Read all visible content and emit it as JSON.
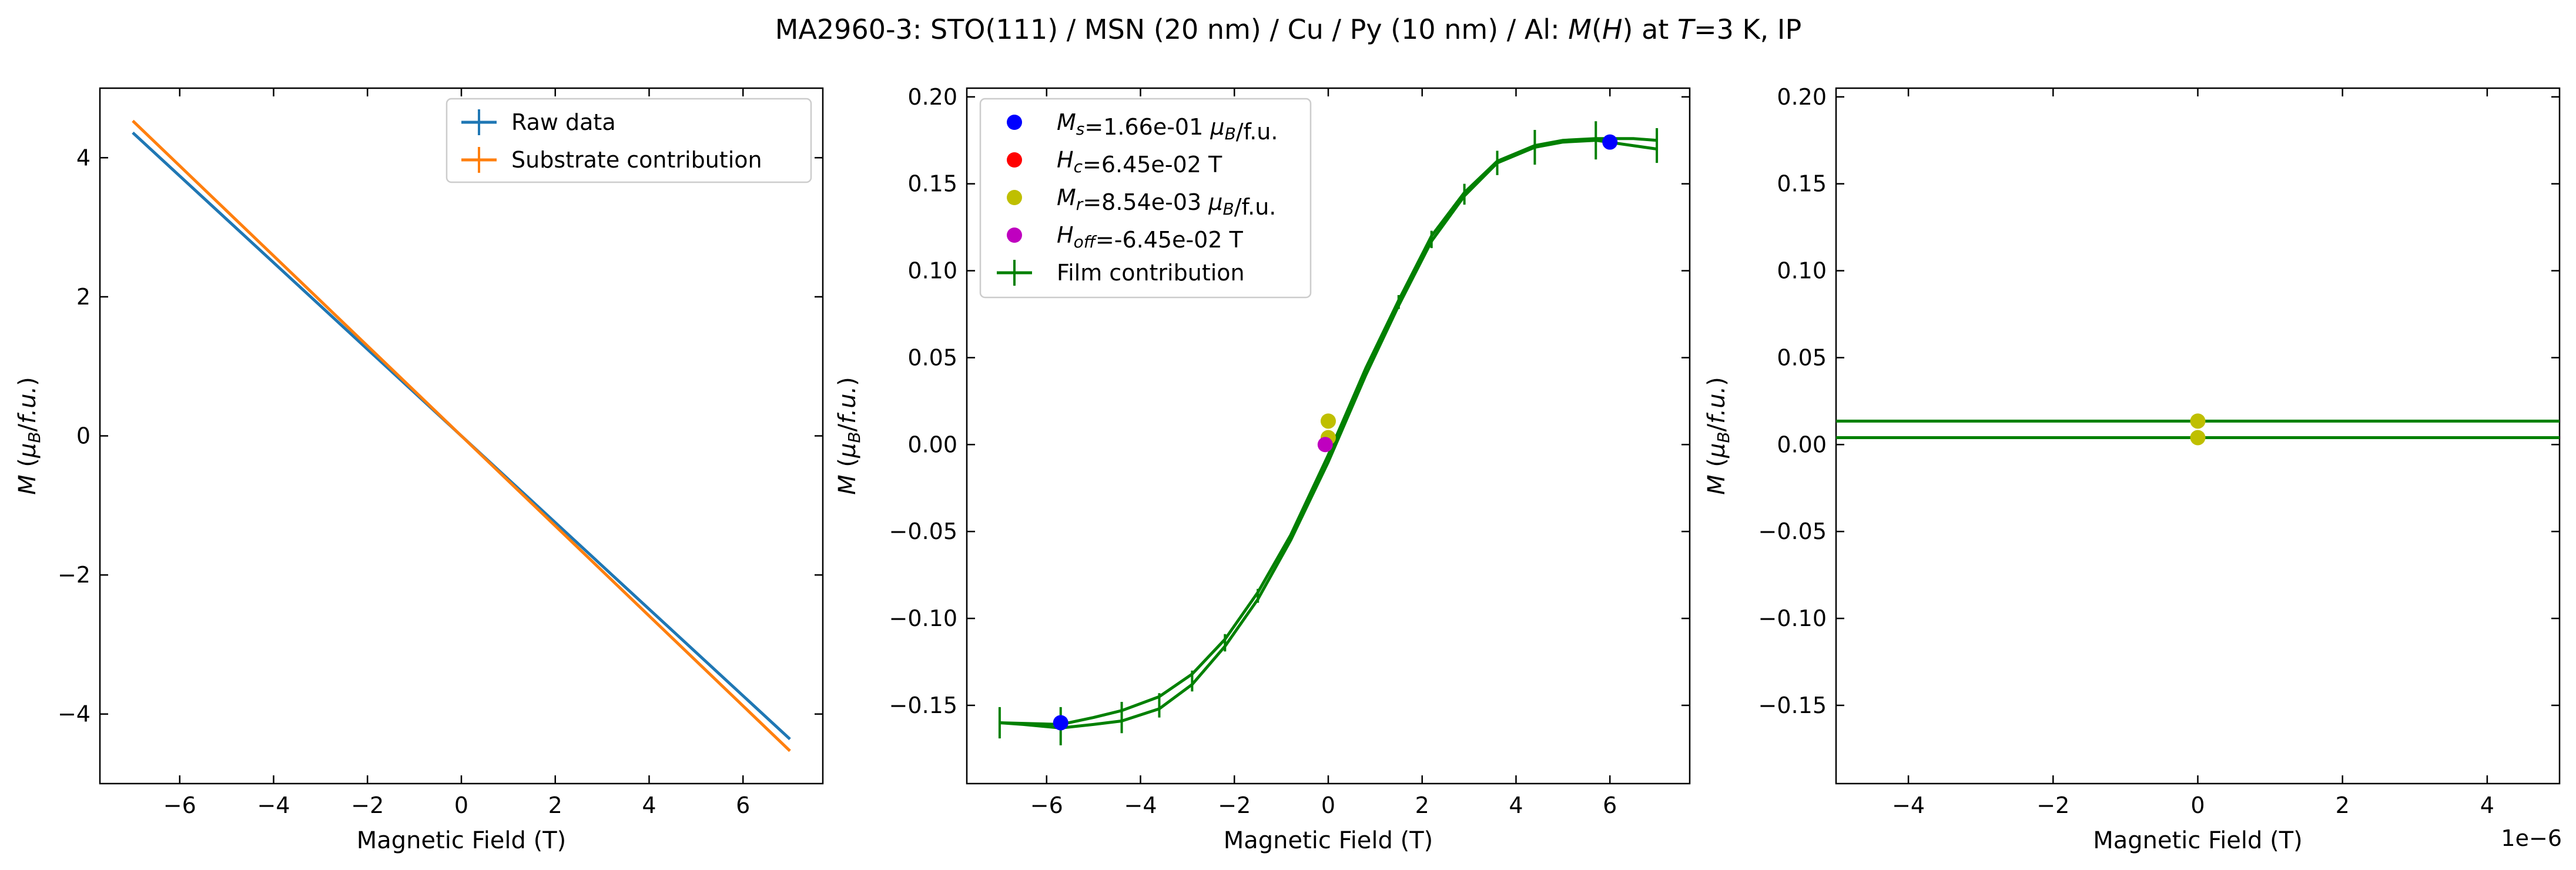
{
  "figure": {
    "title": "MA2960-3: STO(111)  / MSN (20 nm) / Cu / Py (10 nm) / Al: M(H) at T=3 K, IP",
    "title_parts": [
      {
        "text": "MA2960-3: STO(111)  / MSN (20 nm) / Cu / Py (10 nm) / Al: ",
        "italic": false
      },
      {
        "text": "M",
        "italic": true
      },
      {
        "text": "(",
        "italic": false
      },
      {
        "text": "H",
        "italic": true
      },
      {
        "text": ") at ",
        "italic": false
      },
      {
        "text": "T",
        "italic": true
      },
      {
        "text": "=3 K, IP",
        "italic": false
      }
    ],
    "colors": {
      "raw": "#1f77b4",
      "substrate": "#ff7f0e",
      "film": "#008000",
      "ms": "#0000ff",
      "hc": "#ff0000",
      "mr": "#bfbf00",
      "hoff": "#bf00bf"
    }
  },
  "chart_data": [
    {
      "type": "line",
      "xlabel": "Magnetic Field (T)",
      "ylabel": "M (μB/f.u.)",
      "xlim": [
        -7.7,
        7.7
      ],
      "ylim": [
        -5.0,
        5.0
      ],
      "xticks": [
        -6,
        -4,
        -2,
        0,
        2,
        4,
        6
      ],
      "yticks": [
        -4,
        -2,
        0,
        2,
        4
      ],
      "xtick_labels": [
        "−6",
        "−4",
        "−2",
        "0",
        "2",
        "4",
        "6"
      ],
      "ytick_labels": [
        "−4",
        "−2",
        "0",
        "2",
        "4"
      ],
      "legend": {
        "location": "top-right"
      },
      "series": [
        {
          "name": "Raw data",
          "color": "#1f77b4",
          "x": [
            -7,
            0,
            7
          ],
          "y": [
            4.36,
            0.0,
            -4.36
          ]
        },
        {
          "name": "Substrate contribution",
          "color": "#ff7f0e",
          "x": [
            -7,
            0,
            7
          ],
          "y": [
            4.53,
            0.0,
            -4.53
          ]
        }
      ]
    },
    {
      "type": "line",
      "xlabel": "Magnetic Field (T)",
      "ylabel": "M (μB/f.u.)",
      "xlim": [
        -7.7,
        7.7
      ],
      "ylim": [
        -0.195,
        0.205
      ],
      "xticks": [
        -6,
        -4,
        -2,
        0,
        2,
        4,
        6
      ],
      "yticks": [
        -0.15,
        -0.1,
        -0.05,
        0.0,
        0.05,
        0.1,
        0.15,
        0.2
      ],
      "xtick_labels": [
        "−6",
        "−4",
        "−2",
        "0",
        "2",
        "4",
        "6"
      ],
      "ytick_labels": [
        "−0.15",
        "−0.10",
        "−0.05",
        "0.00",
        "0.05",
        "0.10",
        "0.15",
        "0.20"
      ],
      "legend": {
        "location": "top-left"
      },
      "points": [
        {
          "name": "Ms=1.66e-01 μB/f.u.",
          "color": "#0000ff",
          "coords": [
            [
              -5.7,
              -0.16
            ],
            [
              6.0,
              0.174
            ]
          ]
        },
        {
          "name": "Hc=6.45e-02 T",
          "color": "#ff0000",
          "coords": []
        },
        {
          "name": "Mr=8.54e-03 μB/f.u.",
          "color": "#bfbf00",
          "coords": [
            [
              0.0,
              0.0135
            ],
            [
              0.0,
              0.004
            ]
          ]
        },
        {
          "name": "Hoff=-6.45e-02 T",
          "color": "#bf00bf",
          "coords": [
            [
              -0.065,
              0.0
            ]
          ]
        }
      ],
      "legend_entries": [
        {
          "label_parts": [
            {
              "text": "M",
              "italic": true
            },
            {
              "text": "s",
              "sub": true,
              "italic": true
            },
            {
              "text": "=1.66e-01 "
            },
            {
              "text": "μ",
              "italic": true
            },
            {
              "text": "B",
              "sub": true,
              "italic": true
            },
            {
              "text": "/f.u."
            }
          ],
          "color": "#0000ff",
          "marker": "dot"
        },
        {
          "label_parts": [
            {
              "text": "H",
              "italic": true
            },
            {
              "text": "c",
              "sub": true,
              "italic": true
            },
            {
              "text": "=6.45e-02 T"
            }
          ],
          "color": "#ff0000",
          "marker": "dot"
        },
        {
          "label_parts": [
            {
              "text": "M",
              "italic": true
            },
            {
              "text": "r",
              "sub": true,
              "italic": true
            },
            {
              "text": "=8.54e-03 "
            },
            {
              "text": "μ",
              "italic": true
            },
            {
              "text": "B",
              "sub": true,
              "italic": true
            },
            {
              "text": "/f.u."
            }
          ],
          "color": "#bfbf00",
          "marker": "dot"
        },
        {
          "label_parts": [
            {
              "text": "H",
              "italic": true
            },
            {
              "text": "off",
              "sub": true,
              "italic": true
            },
            {
              "text": "=-6.45e-02 T"
            }
          ],
          "color": "#bf00bf",
          "marker": "dot"
        },
        {
          "label_parts": [
            {
              "text": "Film contribution"
            }
          ],
          "color": "#008000",
          "marker": "errorbar"
        }
      ],
      "series": [
        {
          "name": "Film contribution",
          "color": "#008000",
          "branches": [
            {
              "x": [
                -7.0,
                -5.7,
                -5.0,
                -4.4,
                -3.6,
                -2.9,
                -2.2,
                -1.5,
                -0.8,
                0.0,
                0.8,
                1.5,
                2.2,
                2.9,
                3.6,
                4.4,
                5.0,
                5.7,
                6.5,
                7.0
              ],
              "y": [
                -0.16,
                -0.161,
                -0.157,
                -0.153,
                -0.145,
                -0.132,
                -0.112,
                -0.085,
                -0.052,
                -0.006,
                0.044,
                0.083,
                0.12,
                0.145,
                0.163,
                0.172,
                0.175,
                0.176,
                0.176,
                0.175
              ]
            },
            {
              "x": [
                -7.0,
                -6.5,
                -5.7,
                -5.0,
                -4.4,
                -3.6,
                -2.9,
                -2.2,
                -1.5,
                -0.8,
                0.0,
                0.8,
                1.5,
                2.2,
                2.9,
                3.6,
                4.4,
                5.0,
                5.7,
                7.0
              ],
              "y": [
                -0.16,
                -0.161,
                -0.163,
                -0.161,
                -0.159,
                -0.152,
                -0.138,
                -0.116,
                -0.089,
                -0.055,
                -0.01,
                0.04,
                0.08,
                0.117,
                0.143,
                0.162,
                0.171,
                0.174,
                0.175,
                0.17
              ]
            }
          ],
          "errorbars": [
            {
              "x": -7.0,
              "y": -0.16,
              "err": 0.009
            },
            {
              "x": -5.7,
              "y": -0.162,
              "err": 0.011
            },
            {
              "x": -4.4,
              "y": -0.157,
              "err": 0.009
            },
            {
              "x": -3.6,
              "y": -0.15,
              "err": 0.007
            },
            {
              "x": -2.9,
              "y": -0.136,
              "err": 0.006
            },
            {
              "x": -2.2,
              "y": -0.114,
              "err": 0.005
            },
            {
              "x": -1.5,
              "y": -0.087,
              "err": 0.004
            },
            {
              "x": 1.5,
              "y": 0.082,
              "err": 0.004
            },
            {
              "x": 2.2,
              "y": 0.118,
              "err": 0.005
            },
            {
              "x": 2.9,
              "y": 0.144,
              "err": 0.006
            },
            {
              "x": 3.6,
              "y": 0.162,
              "err": 0.007
            },
            {
              "x": 4.4,
              "y": 0.171,
              "err": 0.01
            },
            {
              "x": 5.7,
              "y": 0.175,
              "err": 0.011
            },
            {
              "x": 7.0,
              "y": 0.172,
              "err": 0.01
            }
          ]
        }
      ]
    },
    {
      "type": "line",
      "xlabel": "Magnetic Field (T)",
      "ylabel": "M (μB/f.u.)",
      "xlim": [
        -5e-06,
        5e-06
      ],
      "ylim": [
        -0.195,
        0.205
      ],
      "xticks": [
        -4e-06,
        -2e-06,
        0,
        2e-06,
        4e-06
      ],
      "yticks": [
        -0.15,
        -0.1,
        -0.05,
        0.0,
        0.05,
        0.1,
        0.15,
        0.2
      ],
      "xtick_labels": [
        "−4",
        "−2",
        "0",
        "2",
        "4"
      ],
      "ytick_labels": [
        "−0.15",
        "−0.10",
        "−0.05",
        "0.00",
        "0.05",
        "0.10",
        "0.15",
        "0.20"
      ],
      "offset_text": "1e−6",
      "series": [
        {
          "name": "Film contribution",
          "color": "#008000",
          "x": [
            -5e-06,
            5e-06
          ],
          "y": [
            0.0135,
            0.0135
          ]
        },
        {
          "name": "Film contribution",
          "color": "#008000",
          "x": [
            -5e-06,
            5e-06
          ],
          "y": [
            0.004,
            0.004
          ]
        }
      ],
      "points": [
        {
          "name": "Mr",
          "color": "#bfbf00",
          "coords": [
            [
              0,
              0.0135
            ],
            [
              0,
              0.004
            ]
          ]
        }
      ]
    }
  ]
}
